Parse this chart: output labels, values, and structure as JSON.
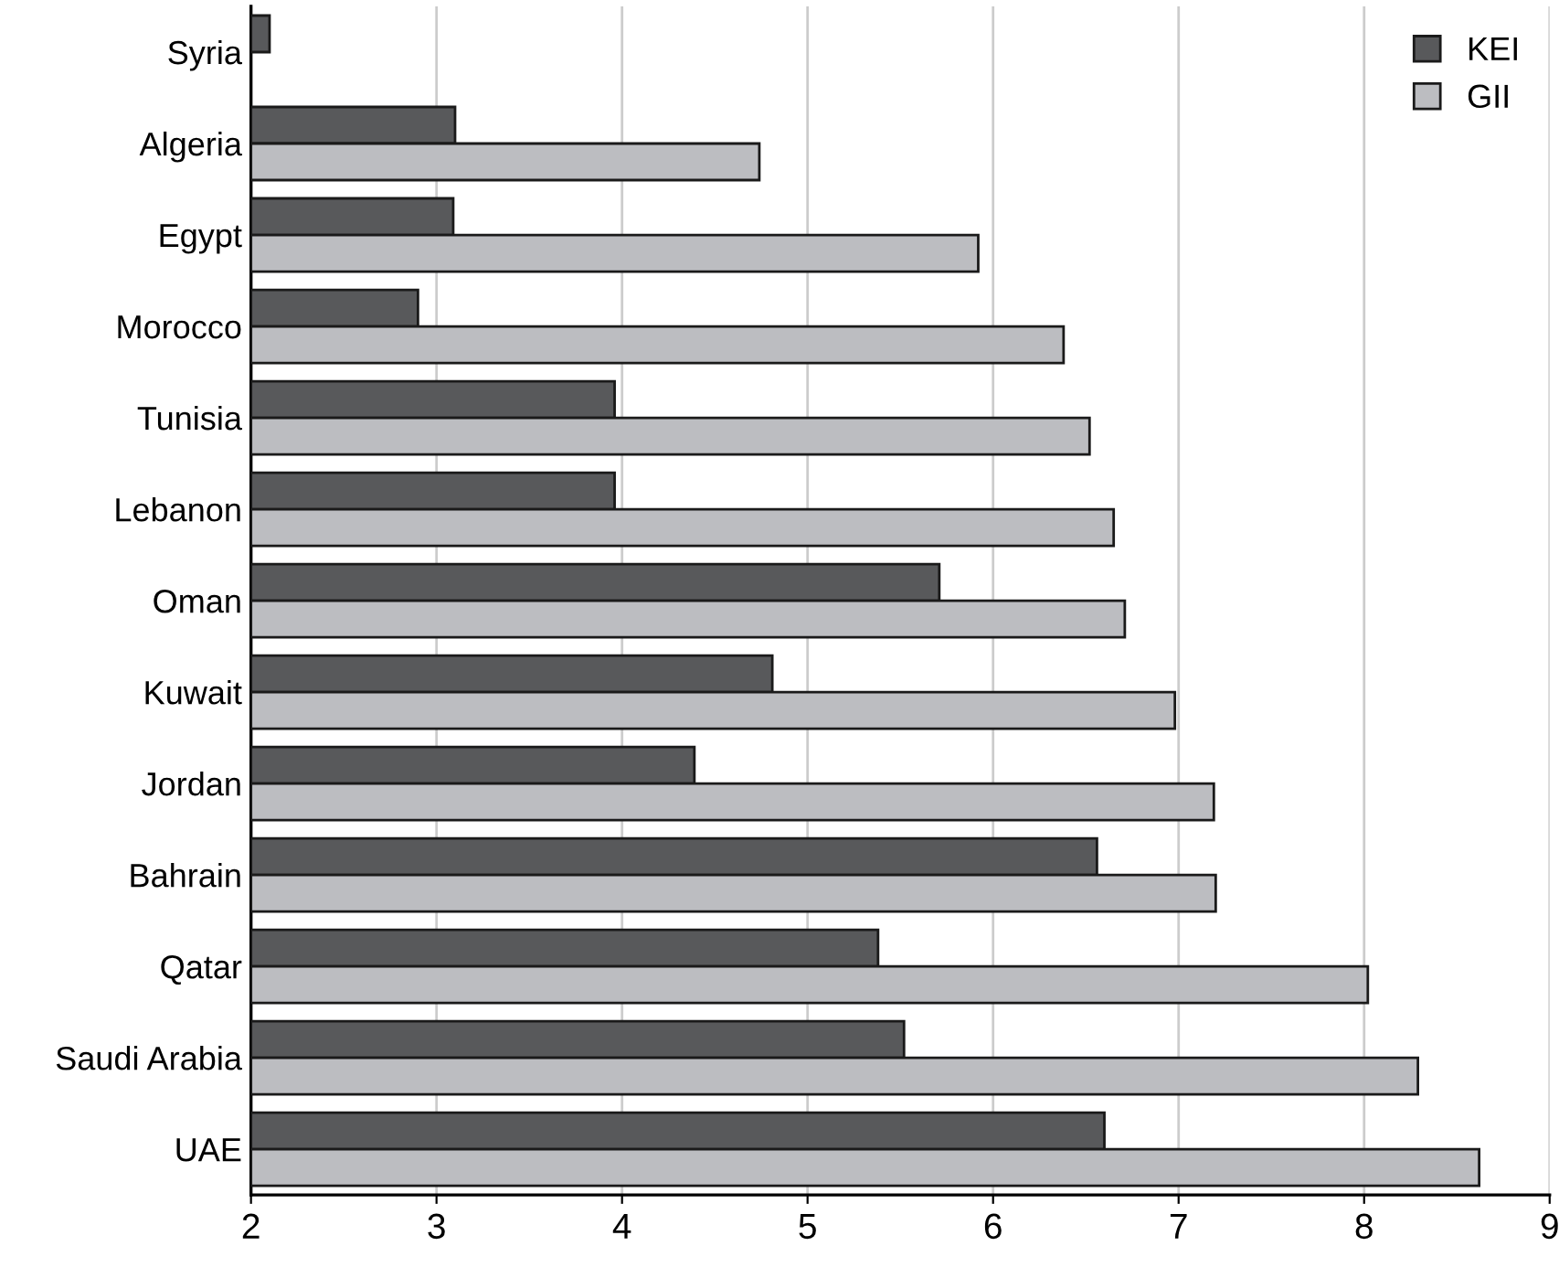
{
  "chart_data": {
    "type": "bar",
    "orientation": "horizontal",
    "categories": [
      "Syria",
      "Algeria",
      "Egypt",
      "Morocco",
      "Tunisia",
      "Lebanon",
      "Oman",
      "Kuwait",
      "Jordan",
      "Bahrain",
      "Qatar",
      "Saudi Arabia",
      "UAE"
    ],
    "series": [
      {
        "name": "KEI",
        "color": "#58595b",
        "values": [
          2.1,
          3.1,
          3.09,
          2.9,
          3.96,
          3.96,
          5.71,
          4.81,
          4.39,
          6.56,
          5.38,
          5.52,
          6.6
        ]
      },
      {
        "name": "GII",
        "color": "#bcbdc1",
        "values": [
          null,
          4.74,
          5.92,
          6.38,
          6.52,
          6.65,
          6.71,
          6.98,
          7.19,
          7.2,
          8.02,
          8.29,
          8.62
        ]
      }
    ],
    "xlim": [
      2,
      9
    ],
    "xticks": [
      2,
      3,
      4,
      5,
      6,
      7,
      8,
      9
    ],
    "grid": "x",
    "legend": "top right"
  }
}
